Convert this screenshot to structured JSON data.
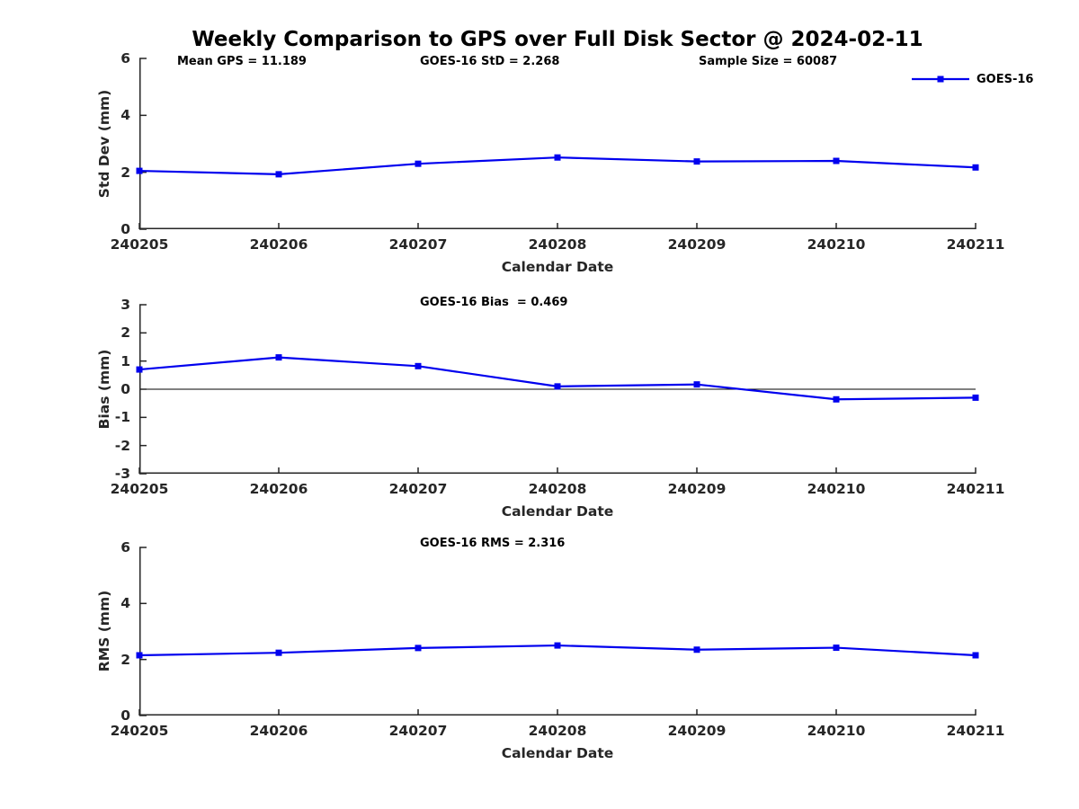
{
  "title": "Weekly Comparison to GPS over Full Disk Sector @ 2024-02-11",
  "colors": {
    "series": "#0000ee",
    "axis": "#262626",
    "zero_line": "#000000"
  },
  "legend": {
    "label": "GOES-16",
    "position": "northeast"
  },
  "annotations": {
    "mean_gps": "Mean GPS = 11.189",
    "std": "GOES-16 StD = 2.268",
    "sample_size": "Sample Size = 60087",
    "bias": "GOES-16 Bias  = 0.469",
    "rms": "GOES-16 RMS = 2.316"
  },
  "chart_data": [
    {
      "type": "line",
      "subplot": "std-dev",
      "ylabel": "Std Dev (mm)",
      "xlabel": "Calendar Date",
      "categories": [
        "240205",
        "240206",
        "240207",
        "240208",
        "240209",
        "240210",
        "240211"
      ],
      "series": [
        {
          "name": "GOES-16",
          "values": [
            2.05,
            1.93,
            2.3,
            2.52,
            2.38,
            2.4,
            2.17
          ]
        }
      ],
      "ylim": [
        0,
        6
      ],
      "yticks": [
        6,
        4,
        2,
        0
      ],
      "marker": "square",
      "grid": false,
      "zero_line": false
    },
    {
      "type": "line",
      "subplot": "bias",
      "ylabel": "Bias (mm)",
      "xlabel": "Calendar Date",
      "categories": [
        "240205",
        "240206",
        "240207",
        "240208",
        "240209",
        "240210",
        "240211"
      ],
      "series": [
        {
          "name": "GOES-16",
          "values": [
            0.7,
            1.13,
            0.82,
            0.1,
            0.17,
            -0.36,
            -0.3
          ]
        }
      ],
      "ylim": [
        -3,
        3
      ],
      "yticks": [
        3,
        2,
        1,
        0,
        -1,
        -2,
        -3
      ],
      "marker": "square",
      "grid": false,
      "zero_line": true
    },
    {
      "type": "line",
      "subplot": "rms",
      "ylabel": "RMS (mm)",
      "xlabel": "Calendar Date",
      "categories": [
        "240205",
        "240206",
        "240207",
        "240208",
        "240209",
        "240210",
        "240211"
      ],
      "series": [
        {
          "name": "GOES-16",
          "values": [
            2.15,
            2.24,
            2.41,
            2.5,
            2.35,
            2.42,
            2.15
          ]
        }
      ],
      "ylim": [
        0,
        6
      ],
      "yticks": [
        6,
        4,
        2,
        0
      ],
      "marker": "square",
      "grid": false,
      "zero_line": false
    }
  ]
}
